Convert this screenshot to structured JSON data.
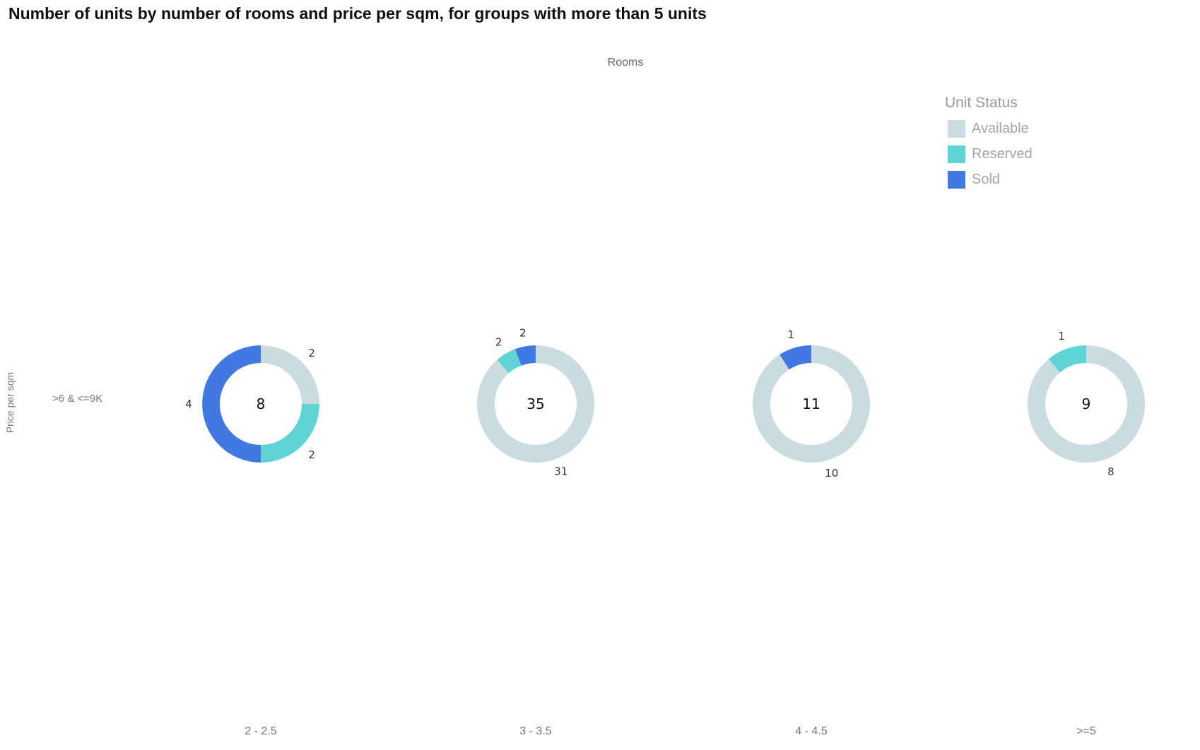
{
  "chart_data": {
    "type": "pie",
    "subtype": "donut-grid",
    "title": "Number of units by number of rooms and price per sqm, for groups with more than 5 units",
    "x_axis_title": "Rooms",
    "y_axis_title": "Price per sqm",
    "rows": [
      ">6 & <=9K"
    ],
    "columns": [
      "2 - 2.5",
      "3 - 3.5",
      "4 - 4.5",
      ">=5"
    ],
    "legend": {
      "title": "Unit Status",
      "placement": "top-right",
      "entries": [
        {
          "label": "Available",
          "color": "#c9dde1"
        },
        {
          "label": "Reserved",
          "color": "#5ed5d4"
        },
        {
          "label": "Sold",
          "color": "#4278e2"
        }
      ]
    },
    "donuts": [
      {
        "row": ">6 & <=9K",
        "column": "2 - 2.5",
        "total": "8",
        "slices": [
          {
            "status": "Available",
            "value": 2
          },
          {
            "status": "Reserved",
            "value": 2
          },
          {
            "status": "Sold",
            "value": 4
          }
        ]
      },
      {
        "row": ">6 & <=9K",
        "column": "3 - 3.5",
        "total": "35",
        "slices": [
          {
            "status": "Available",
            "value": 31
          },
          {
            "status": "Reserved",
            "value": 2
          },
          {
            "status": "Sold",
            "value": 2
          }
        ]
      },
      {
        "row": ">6 & <=9K",
        "column": "4 - 4.5",
        "total": "11",
        "slices": [
          {
            "status": "Available",
            "value": 10
          },
          {
            "status": "Sold",
            "value": 1
          }
        ]
      },
      {
        "row": ">6 & <=9K",
        "column": ">=5",
        "total": "9",
        "slices": [
          {
            "status": "Available",
            "value": 8
          },
          {
            "status": "Reserved",
            "value": 1
          }
        ]
      }
    ]
  }
}
